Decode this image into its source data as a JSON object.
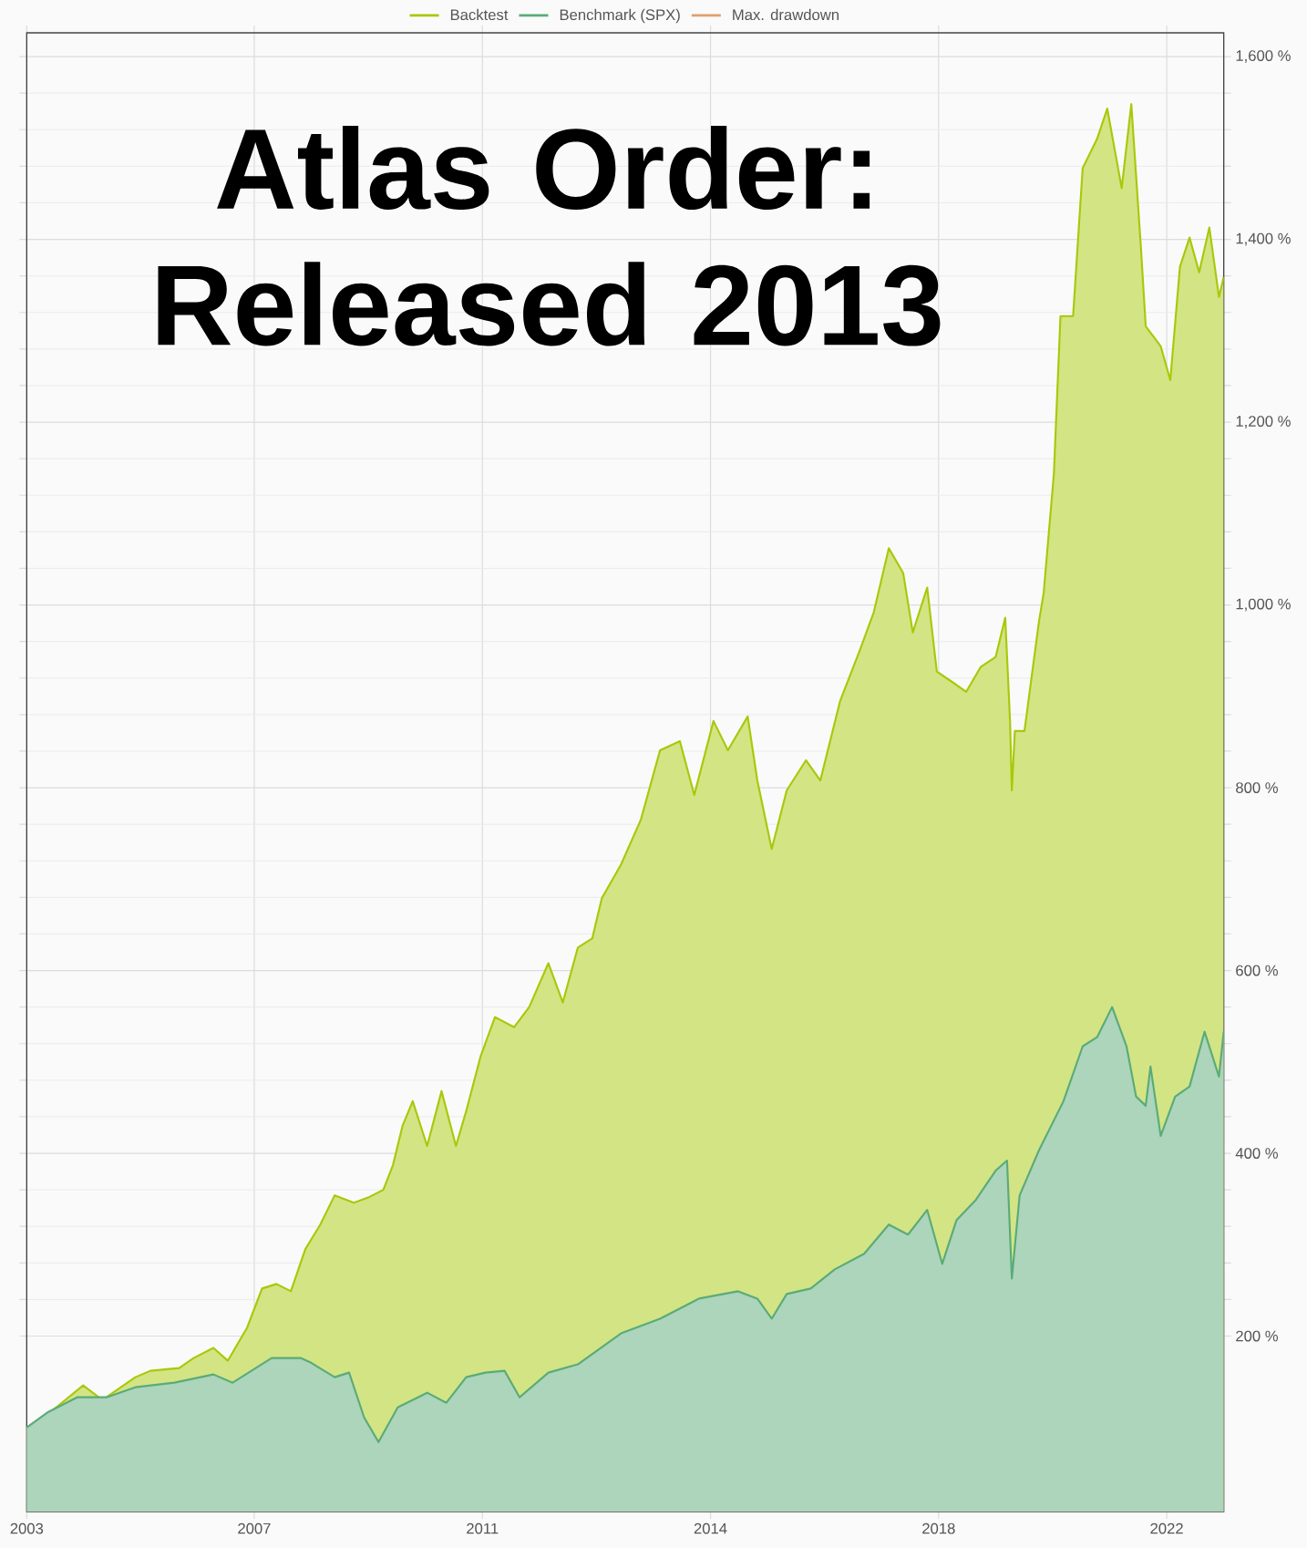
{
  "chart_data": {
    "type": "area",
    "title": "Atlas Order: Released 2013",
    "x": [
      2003.0,
      2003.36,
      2003.94,
      2004.26,
      2004.81,
      2005.06,
      2005.54,
      2005.78,
      2006.11,
      2006.35,
      2006.67,
      2006.92,
      2007.16,
      2007.4,
      2007.64,
      2007.89,
      2008.13,
      2008.45,
      2008.7,
      2008.94,
      2009.1,
      2009.26,
      2009.43,
      2009.67,
      2009.91,
      2010.15,
      2010.32,
      2010.56,
      2010.8,
      2011.12,
      2011.37,
      2011.69,
      2011.93,
      2012.18,
      2012.42,
      2012.58,
      2012.9,
      2013.23,
      2013.55,
      2013.88,
      2014.12,
      2014.44,
      2014.68,
      2015.01,
      2015.17,
      2015.41,
      2015.66,
      2015.98,
      2016.22,
      2016.55,
      2016.87,
      2017.11,
      2017.36,
      2017.6,
      2017.76,
      2018.0,
      2018.16,
      2018.41,
      2018.65,
      2018.89,
      2019.14,
      2019.3,
      2019.38,
      2019.41,
      2019.46,
      2019.62,
      2019.86,
      2019.94,
      2020.11,
      2020.22,
      2020.43,
      2020.59,
      2020.83,
      2021.0,
      2021.24,
      2021.4,
      2021.56,
      2021.64,
      2021.89,
      2022.05,
      2022.21,
      2022.37,
      2022.53,
      2022.7,
      2022.86,
      2022.94
    ],
    "series": [
      {
        "name": "Backtest",
        "color": "#a8c80a",
        "values": [
          100,
          115,
          146,
          130,
          155,
          162,
          165,
          176,
          187,
          173,
          209,
          252,
          257,
          249,
          295,
          322,
          354,
          346,
          352,
          360,
          387,
          430,
          457,
          408,
          468,
          408,
          446,
          506,
          549,
          538,
          560,
          608,
          565,
          625,
          635,
          679,
          716,
          765,
          841,
          851,
          792,
          873,
          841,
          878,
          808,
          733,
          797,
          830,
          808,
          895,
          949,
          992,
          1062,
          1035,
          970,
          1019,
          927,
          916,
          905,
          932,
          943,
          986,
          873,
          797,
          862,
          862,
          981,
          1013,
          1143,
          1316,
          1316,
          1478,
          1510,
          1543,
          1456,
          1548,
          1391,
          1305,
          1283,
          1246,
          1370,
          1402,
          1364,
          1413,
          1337,
          1359
        ]
      },
      {
        "name": "Benchmark (SPX)",
        "color": "#5aab78",
        "x": [
          2003.0,
          2003.36,
          2003.84,
          2004.33,
          2004.81,
          2005.46,
          2006.11,
          2006.43,
          2007.08,
          2007.56,
          2007.73,
          2008.13,
          2008.37,
          2008.62,
          2008.86,
          2009.18,
          2009.67,
          2009.99,
          2010.32,
          2010.64,
          2010.96,
          2011.21,
          2011.69,
          2012.18,
          2012.9,
          2013.55,
          2014.2,
          2014.85,
          2015.17,
          2015.41,
          2015.66,
          2016.06,
          2016.46,
          2016.95,
          2017.36,
          2017.68,
          2018.0,
          2018.25,
          2018.49,
          2018.81,
          2019.14,
          2019.33,
          2019.41,
          2019.54,
          2019.86,
          2020.27,
          2020.59,
          2020.83,
          2021.08,
          2021.32,
          2021.48,
          2021.64,
          2021.72,
          2021.89,
          2022.13,
          2022.37,
          2022.62,
          2022.86,
          2022.94
        ],
        "values": [
          100,
          117,
          133,
          133,
          144,
          149,
          158,
          149,
          176,
          176,
          171,
          155,
          160,
          111,
          84,
          122,
          138,
          127,
          155,
          160,
          162,
          133,
          160,
          169,
          203,
          219,
          241,
          249,
          241,
          219,
          246,
          252,
          273,
          290,
          322,
          311,
          338,
          279,
          327,
          349,
          381,
          392,
          263,
          354,
          403,
          457,
          517,
          527,
          560,
          517,
          462,
          452,
          495,
          419,
          462,
          473,
          533,
          484,
          533
        ]
      },
      {
        "name": "Max. drawdown",
        "color": "#e0a070",
        "values": [
          null,
          null,
          null,
          null,
          null,
          null,
          null,
          null,
          null,
          null,
          null,
          null,
          null,
          null,
          null,
          null,
          null,
          null,
          null,
          null,
          null,
          null,
          null,
          null,
          null,
          null,
          null,
          null,
          null,
          null,
          null,
          null,
          null,
          null,
          null,
          null,
          null,
          null,
          null,
          null,
          null,
          null,
          null,
          null,
          null,
          null,
          null,
          null,
          null,
          null,
          null,
          null,
          null,
          null,
          null,
          null,
          null,
          null,
          null,
          null,
          null,
          null,
          null,
          null,
          null,
          null,
          null,
          null,
          null,
          null,
          null,
          null,
          null,
          null,
          null,
          null,
          null,
          null,
          null,
          null,
          null,
          null,
          null,
          null,
          null,
          null
        ]
      }
    ],
    "xlim": [
      2003.0,
      2022.94
    ],
    "xticks": [
      {
        "value": 2003.0,
        "label": "2003"
      },
      {
        "value": 2006.79,
        "label": "2007"
      },
      {
        "value": 2010.59,
        "label": "2011"
      },
      {
        "value": 2014.39,
        "label": "2014"
      },
      {
        "value": 2018.19,
        "label": "2018"
      },
      {
        "value": 2021.99,
        "label": "2022"
      }
    ],
    "ylim": [
      8,
      1626
    ],
    "yticks": [
      {
        "value": 200,
        "label": "200 %"
      },
      {
        "value": 400,
        "label": "400 %"
      },
      {
        "value": 600,
        "label": "600 %"
      },
      {
        "value": 800,
        "label": "800 %"
      },
      {
        "value": 1000,
        "label": "1,000 %"
      },
      {
        "value": 1200,
        "label": "1,200 %"
      },
      {
        "value": 1400,
        "label": "1,400 %"
      },
      {
        "value": 1600,
        "label": "1,600 %"
      }
    ],
    "grid": true,
    "legend": "top"
  }
}
